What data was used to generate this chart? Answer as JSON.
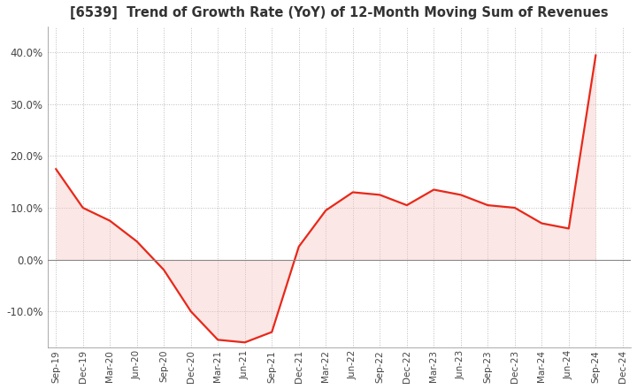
{
  "title": "[6539]  Trend of Growth Rate (YoY) of 12-Month Moving Sum of Revenues",
  "title_fontsize": 10.5,
  "line_color": "#e8281a",
  "fill_color": "#f5c5c0",
  "background_color": "#ffffff",
  "plot_bg_color": "#ffffff",
  "grid_color": "#aaaaaa",
  "ylim": [
    -17,
    45
  ],
  "yticks": [
    -10,
    0,
    10,
    20,
    30,
    40
  ],
  "xlabels": [
    "Sep-19",
    "Dec-19",
    "Mar-20",
    "Jun-20",
    "Sep-20",
    "Dec-20",
    "Mar-21",
    "Jun-21",
    "Sep-21",
    "Dec-21",
    "Mar-22",
    "Jun-22",
    "Sep-22",
    "Dec-22",
    "Mar-23",
    "Jun-23",
    "Sep-23",
    "Dec-23",
    "Mar-24",
    "Jun-24",
    "Sep-24",
    "Dec-24"
  ],
  "values": [
    17.5,
    10.0,
    7.5,
    3.5,
    -2.0,
    -10.0,
    -15.5,
    -16.0,
    -14.0,
    2.5,
    9.5,
    13.0,
    12.5,
    10.5,
    13.5,
    12.5,
    10.5,
    10.0,
    7.0,
    6.0,
    39.5,
    null
  ]
}
